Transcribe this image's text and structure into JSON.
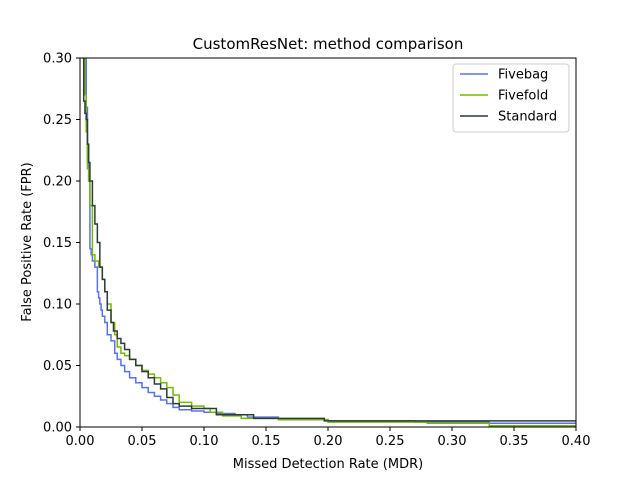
{
  "chart_data": {
    "type": "line",
    "title": "CustomResNet: method comparison",
    "xlabel": "Missed Detection Rate (MDR)",
    "ylabel": "False Positive Rate (FPR)",
    "xlim": [
      0.0,
      0.4
    ],
    "ylim": [
      0.0,
      0.3
    ],
    "xticks": [
      0.0,
      0.05,
      0.1,
      0.15,
      0.2,
      0.25,
      0.3,
      0.35,
      0.4
    ],
    "xtick_labels": [
      "0.00",
      "0.05",
      "0.10",
      "0.15",
      "0.20",
      "0.25",
      "0.30",
      "0.35",
      "0.40"
    ],
    "yticks": [
      0.0,
      0.05,
      0.1,
      0.15,
      0.2,
      0.25,
      0.3
    ],
    "ytick_labels": [
      "0.00",
      "0.05",
      "0.10",
      "0.15",
      "0.20",
      "0.25",
      "0.30"
    ],
    "grid": false,
    "legend_position": "top-right",
    "step": true,
    "series": [
      {
        "name": "Fivebag",
        "color": "#5a72e8",
        "x": [
          0.003,
          0.005,
          0.006,
          0.007,
          0.008,
          0.009,
          0.01,
          0.012,
          0.014,
          0.015,
          0.016,
          0.017,
          0.018,
          0.02,
          0.022,
          0.025,
          0.028,
          0.03,
          0.033,
          0.036,
          0.04,
          0.045,
          0.05,
          0.055,
          0.06,
          0.065,
          0.07,
          0.075,
          0.08,
          0.09,
          0.1,
          0.11,
          0.125,
          0.135,
          0.16,
          0.2,
          0.27,
          0.33,
          0.4
        ],
        "y": [
          0.3,
          0.26,
          0.215,
          0.2,
          0.145,
          0.14,
          0.135,
          0.13,
          0.11,
          0.105,
          0.1,
          0.095,
          0.09,
          0.085,
          0.075,
          0.07,
          0.06,
          0.055,
          0.05,
          0.045,
          0.04,
          0.036,
          0.032,
          0.028,
          0.025,
          0.022,
          0.019,
          0.016,
          0.014,
          0.013,
          0.012,
          0.011,
          0.01,
          0.008,
          0.006,
          0.005,
          0.004,
          0.003,
          0.003
        ]
      },
      {
        "name": "Fivefold",
        "color": "#76b900",
        "x": [
          0.003,
          0.004,
          0.005,
          0.006,
          0.007,
          0.008,
          0.01,
          0.012,
          0.015,
          0.018,
          0.02,
          0.022,
          0.025,
          0.028,
          0.03,
          0.033,
          0.036,
          0.04,
          0.045,
          0.05,
          0.055,
          0.06,
          0.065,
          0.07,
          0.075,
          0.08,
          0.09,
          0.1,
          0.105,
          0.115,
          0.13,
          0.16,
          0.2,
          0.28,
          0.33,
          0.4
        ],
        "y": [
          0.3,
          0.27,
          0.24,
          0.21,
          0.2,
          0.18,
          0.14,
          0.135,
          0.13,
          0.12,
          0.11,
          0.1,
          0.085,
          0.075,
          0.065,
          0.06,
          0.058,
          0.055,
          0.05,
          0.046,
          0.043,
          0.04,
          0.036,
          0.032,
          0.026,
          0.02,
          0.017,
          0.015,
          0.012,
          0.009,
          0.007,
          0.006,
          0.004,
          0.003,
          0.001,
          0.001
        ]
      },
      {
        "name": "Standard",
        "color": "#2e3b3b",
        "x": [
          0.002,
          0.003,
          0.004,
          0.005,
          0.006,
          0.007,
          0.008,
          0.01,
          0.012,
          0.014,
          0.016,
          0.018,
          0.02,
          0.022,
          0.025,
          0.027,
          0.03,
          0.033,
          0.036,
          0.04,
          0.045,
          0.05,
          0.055,
          0.06,
          0.065,
          0.07,
          0.075,
          0.08,
          0.09,
          0.11,
          0.14,
          0.197,
          0.4
        ],
        "y": [
          0.3,
          0.265,
          0.255,
          0.25,
          0.23,
          0.215,
          0.2,
          0.18,
          0.165,
          0.15,
          0.13,
          0.12,
          0.11,
          0.095,
          0.085,
          0.078,
          0.072,
          0.068,
          0.063,
          0.055,
          0.05,
          0.045,
          0.04,
          0.035,
          0.031,
          0.024,
          0.019,
          0.017,
          0.015,
          0.01,
          0.007,
          0.005,
          0.005
        ]
      }
    ]
  }
}
